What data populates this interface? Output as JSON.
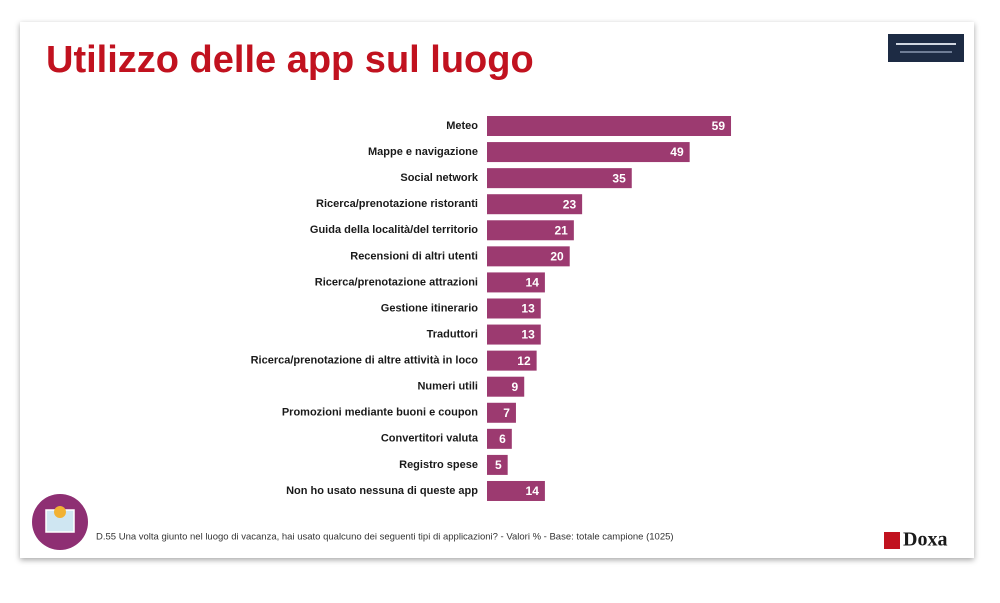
{
  "chart_data": {
    "type": "bar",
    "orientation": "horizontal",
    "title": "Utilizzo delle app sul luogo",
    "categories": [
      "Meteo",
      "Mappe e navigazione",
      "Social network",
      "Ricerca/prenotazione ristoranti",
      "Guida della località/del territorio",
      "Recensioni di altri utenti",
      "Ricerca/prenotazione attrazioni",
      "Gestione itinerario",
      "Traduttori",
      "Ricerca/prenotazione di altre attività in loco",
      "Numeri utili",
      "Promozioni mediante buoni e coupon",
      "Convertitori valuta",
      "Registro spese",
      "Non ho usato nessuna di queste app"
    ],
    "values": [
      59,
      49,
      35,
      23,
      21,
      20,
      14,
      13,
      13,
      12,
      9,
      7,
      6,
      5,
      14
    ],
    "color": "#9c3a70",
    "note": "D.55 Una volta giunto nel luogo di vacanza, hai usato qualcuno dei seguenti tipi di applicazioni?  - Valori % - Base: totale campione (1025)",
    "brand": "Doxa"
  }
}
